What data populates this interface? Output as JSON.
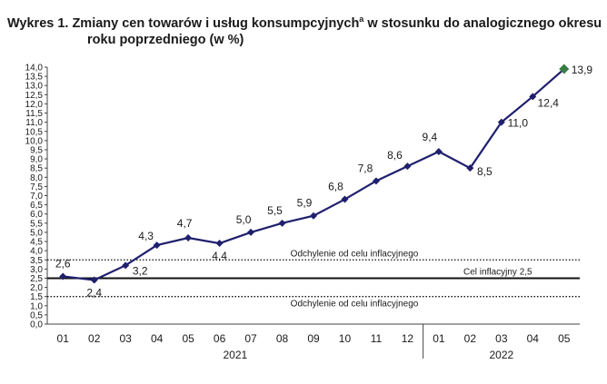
{
  "header": {
    "prefix": "Wykres 1.",
    "title_line1": "Zmiany cen towarów i usług konsumpcyjnych",
    "superscript": "a",
    "title_line1_rest": " w stosunku do analogicznego okresu",
    "title_line2": "roku poprzedniego (w %)"
  },
  "chart_data": {
    "type": "line",
    "title": "Zmiany cen towarów i usług konsumpcyjnych w stosunku do analogicznego okresu roku poprzedniego (w %)",
    "xlabel": "",
    "ylabel": "",
    "categories": [
      "01",
      "02",
      "03",
      "04",
      "05",
      "06",
      "07",
      "08",
      "09",
      "10",
      "11",
      "12",
      "01",
      "02",
      "03",
      "04",
      "05"
    ],
    "year_groups": [
      {
        "label": "2021",
        "start": 0,
        "end": 11
      },
      {
        "label": "2022",
        "start": 12,
        "end": 16
      }
    ],
    "series": [
      {
        "values": [
          2.6,
          2.4,
          3.2,
          4.3,
          4.7,
          4.4,
          5.0,
          5.5,
          5.9,
          6.8,
          7.8,
          8.6,
          9.4,
          8.5,
          11.0,
          12.4,
          13.9
        ],
        "labels": [
          "2,6",
          "2,4",
          "3,2",
          "4,3",
          "4,7",
          "4,4",
          "5,0",
          "5,5",
          "5,9",
          "6,8",
          "7,8",
          "8,6",
          "9,4",
          "8,5",
          "11,0",
          "12,4",
          "13,9"
        ],
        "color": "#1f1f6e",
        "last_point_color": "#3a7d44"
      }
    ],
    "ylim": [
      0,
      14
    ],
    "ystep": 0.5,
    "ytick_labels": [
      "0,0",
      "0,5",
      "1,0",
      "1,5",
      "2,0",
      "2,5",
      "3,0",
      "3,5",
      "4,0",
      "4,5",
      "5,0",
      "5,5",
      "6,0",
      "6,5",
      "7,0",
      "7,5",
      "8,0",
      "8,5",
      "9,0",
      "9,5",
      "10,0",
      "10,5",
      "11,0",
      "11,5",
      "12,0",
      "12,5",
      "13,0",
      "13,5",
      "14,0"
    ],
    "grid": false,
    "reference_lines": [
      {
        "value": 3.5,
        "style": "dotted",
        "label": "Odchylenie od celu inflacyjnego"
      },
      {
        "value": 2.5,
        "style": "solid",
        "label": "Cel inflacyjny 2,5"
      },
      {
        "value": 1.5,
        "style": "dotted",
        "label": "Odchylenie od celu inflacyjnego"
      }
    ]
  }
}
